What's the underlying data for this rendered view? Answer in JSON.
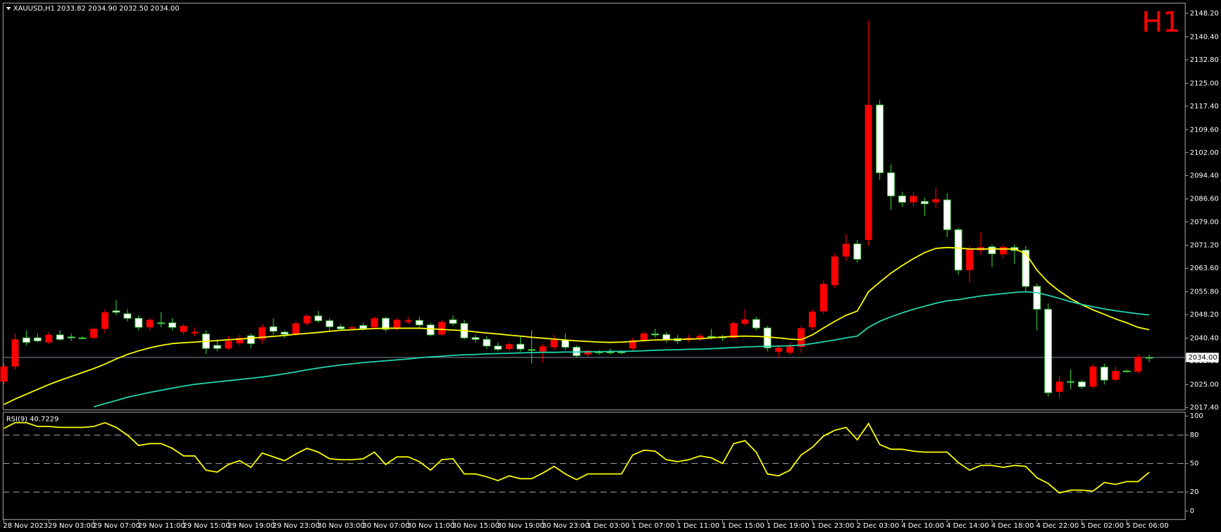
{
  "chart_data": [
    {
      "type": "candlestick",
      "symbol": "XAUUSD,H1",
      "quote": "2033.82 2034.90 2032.50 2034.00",
      "timeframe": "H1",
      "bull_color": "#ffffff",
      "bull_outline": "#32cd32",
      "bear_color": "#ff0000",
      "categories": [
        "28 Nov 2023",
        null,
        null,
        null,
        "29 Nov 03:00",
        null,
        null,
        null,
        "29 Nov 07:00",
        null,
        null,
        null,
        "29 Nov 11:00",
        null,
        null,
        null,
        "29 Nov 15:00",
        null,
        null,
        null,
        "29 Nov 19:00",
        null,
        null,
        null,
        "29 Nov 23:00",
        null,
        null,
        null,
        "30 Nov 03:00",
        null,
        null,
        null,
        "30 Nov 07:00",
        null,
        null,
        null,
        "30 Nov 11:00",
        null,
        null,
        null,
        "30 Nov 15:00",
        null,
        null,
        null,
        "30 Nov 19:00",
        null,
        null,
        null,
        "30 Nov 23:00",
        null,
        null,
        null,
        "1 Dec 03:00",
        null,
        null,
        null,
        "1 Dec 07:00",
        null,
        null,
        null,
        "1 Dec 11:00",
        null,
        null,
        null,
        "1 Dec 15:00",
        null,
        null,
        null,
        "1 Dec 19:00",
        null,
        null,
        null,
        "1 Dec 23:00",
        null,
        null,
        null,
        "2 Dec 03:00",
        null,
        null,
        null,
        "4 Dec 10:00",
        null,
        null,
        null,
        "4 Dec 14:00",
        null,
        null,
        null,
        "4 Dec 18:00",
        null,
        null,
        null,
        "4 Dec 22:00",
        null,
        null,
        null,
        "5 Dec 02:00",
        null,
        null,
        null,
        "5 Dec 06:00",
        null,
        null
      ],
      "open": [
        2031,
        2040,
        2039,
        2039.5,
        2041.5,
        2040,
        2040.5,
        2040.5,
        2043.5,
        2049,
        2049,
        2047,
        2044,
        2046.5,
        2045.5,
        2044,
        2044.5,
        2042.5,
        2037,
        2037,
        2039.5,
        2040.5,
        2038.6,
        2044,
        2042.7,
        2041.7,
        2045.3,
        2047.8,
        2046.2,
        2044.2,
        2043.5,
        2044,
        2043.6,
        2047,
        2043.3,
        2046.5,
        2046.3,
        2044.8,
        2041.5,
        2045.8,
        2045.3,
        2040.5,
        2040,
        2037.8,
        2036.7,
        2038.4,
        2036.8,
        2036.4,
        2037.7,
        2039.8,
        2037.4,
        2034.6,
        2036.2,
        2035.6,
        2035.8,
        2035.6,
        2039.7,
        2042,
        2041.5,
        2039.8,
        2039.5,
        2040.5,
        2041.2,
        2040.8,
        2040.5,
        2045.4,
        2046.6,
        2043.8,
        2037.2,
        2037.2,
        2037.6,
        2043.7,
        2049.2,
        2058.4,
        2067.5,
        2071.7,
        2066.6,
        2117.8,
        2095.3,
        2087.6,
        2085.5,
        2087.6,
        2085,
        2086.5,
        2076.4,
        2063,
        2070,
        2070.6,
        2068.4,
        2070.7,
        2069.5,
        2057.6,
        2050,
        2022.3,
        2026,
        2025.8,
        2024.3,
        2031,
        2026.5,
        2029.5,
        2029.3,
        2034.2,
        2033.82
      ],
      "high": [
        2032,
        2042,
        2043,
        2042,
        2042.5,
        2043,
        2042,
        2041,
        2044,
        2050,
        2053,
        2050,
        2048,
        2047,
        2049,
        2047,
        2045,
        2044,
        2043,
        2040,
        2041,
        2041.5,
        2042,
        2045,
        2047,
        2043,
        2046,
        2048.5,
        2049.5,
        2047,
        2045,
        2044.5,
        2045.5,
        2047.5,
        2047.5,
        2047,
        2047.5,
        2047.5,
        2045.5,
        2046.5,
        2048,
        2046.5,
        2041.5,
        2041,
        2039,
        2039,
        2041,
        2043,
        2038.5,
        2041.5,
        2042,
        2038,
        2036.5,
        2036.5,
        2037,
        2036.5,
        2040.5,
        2042.5,
        2043.5,
        2042.5,
        2041.5,
        2041.5,
        2042,
        2043.5,
        2041.5,
        2046,
        2050,
        2047.5,
        2044.5,
        2038,
        2039,
        2044.5,
        2050,
        2059.5,
        2068.5,
        2075,
        2073,
        2145.7,
        2119.5,
        2098,
        2089,
        2089,
        2087,
        2090.5,
        2088.5,
        2077,
        2071,
        2075.5,
        2071.5,
        2071.5,
        2071.5,
        2071,
        2058.5,
        2052,
        2028,
        2030,
        2026.5,
        2032,
        2032,
        2031,
        2030,
        2035,
        2034.9
      ],
      "low": [
        2025,
        2030,
        2038,
        2039,
        2038.5,
        2039.5,
        2039.5,
        2040,
        2040,
        2042,
        2048,
        2046,
        2043,
        2043,
        2044,
        2043,
        2041.5,
        2041,
        2035,
        2036,
        2036.5,
        2038,
        2037,
        2038.5,
        2041.5,
        2040.5,
        2041,
        2044.5,
        2045.5,
        2043,
        2043,
        2043,
        2043,
        2043.5,
        2042.5,
        2043,
        2045,
        2044,
        2041,
        2041,
        2044.5,
        2040,
        2039,
        2037,
        2036,
        2036,
        2036,
        2032,
        2032.5,
        2036.5,
        2036.5,
        2034,
        2034.3,
        2034.8,
        2035,
        2035,
        2036,
        2039,
        2040.5,
        2039,
        2038.5,
        2039,
        2039.5,
        2040,
        2039.5,
        2040,
        2044.5,
        2043,
        2036,
        2034,
        2034.8,
        2035.5,
        2043,
        2048.5,
        2057,
        2066,
        2065.5,
        2071,
        2093,
        2083,
        2084,
        2084,
        2081,
        2083.5,
        2074,
        2061.5,
        2059,
        2068,
        2064,
        2067,
        2065,
        2056,
        2043,
        2021,
        2020.5,
        2023.5,
        2023.5,
        2023.8,
        2025,
        2026,
        2029,
        2028.5,
        2032.5
      ],
      "close": [
        2026,
        2031,
        2040.5,
        2040.5,
        2039,
        2041.5,
        2040.8,
        2040.5,
        2040.5,
        2043.5,
        2049.5,
        2048.5,
        2047,
        2044,
        2045.5,
        2045.5,
        2042.5,
        2042,
        2041.8,
        2038,
        2037,
        2038.7,
        2041.2,
        2040,
        2044.2,
        2042.4,
        2041.7,
        2045.3,
        2047.8,
        2046.2,
        2044.2,
        2043.6,
        2044.6,
        2044,
        2047,
        2043.5,
        2045.8,
        2046.3,
        2044.8,
        2041.6,
        2046.5,
        2045.3,
        2040.6,
        2040,
        2037.8,
        2036.8,
        2038.4,
        2036.6,
        2036,
        2037.4,
        2039.8,
        2037.4,
        2035,
        2035.8,
        2035.8,
        2035.8,
        2037,
        2039.8,
        2041.8,
        2041.6,
        2040.3,
        2039.8,
        2040,
        2041,
        2040.8,
        2040.5,
        2045.2,
        2046.6,
        2043.8,
        2035.9,
        2035.6,
        2037.5,
        2044,
        2049.3,
        2058,
        2067.5,
        2071.7,
        2073,
        2117.8,
        2095.3,
        2087.6,
        2085.5,
        2085.8,
        2085.5,
        2086.3,
        2076.4,
        2063,
        2069.5,
        2070.7,
        2068.2,
        2070.5,
        2069.6,
        2057.6,
        2050,
        2022.6,
        2026,
        2025.9,
        2024.3,
        2030.8,
        2026.6,
        2029.5,
        2029.3,
        2034
      ],
      "series": [
        {
          "color": "#ffff00",
          "values": [
            2018.4,
            2020.2,
            2021.8,
            2023.4,
            2025,
            2026.4,
            2027.7,
            2029,
            2030.3,
            2031.8,
            2033.5,
            2035,
            2036.2,
            2037.2,
            2038,
            2038.6,
            2038.9,
            2039.1,
            2039.4,
            2039.6,
            2039.9,
            2040.1,
            2040.4,
            2040.7,
            2041,
            2041.3,
            2041.7,
            2042,
            2042.3,
            2042.7,
            2043,
            2043.2,
            2043.4,
            2043.6,
            2043.7,
            2043.7,
            2043.7,
            2043.7,
            2043.5,
            2043.3,
            2043.1,
            2042.9,
            2042.5,
            2042.1,
            2041.8,
            2041.4,
            2041.1,
            2040.7,
            2040.4,
            2040.1,
            2039.8,
            2039.5,
            2039.3,
            2039.1,
            2039,
            2039.1,
            2039.3,
            2039.6,
            2039.8,
            2039.9,
            2040,
            2040.1,
            2040.2,
            2040.5,
            2040.8,
            2041,
            2041.1,
            2041,
            2040.8,
            2040.5,
            2040.1,
            2039.9,
            2041.5,
            2043.8,
            2046,
            2048,
            2049.4,
            2055.8,
            2059,
            2062,
            2064.5,
            2066.8,
            2068.8,
            2070.2,
            2070.5,
            2070.3,
            2070,
            2070,
            2070,
            2070,
            2070,
            2068.5,
            2063,
            2059,
            2056,
            2053.5,
            2051.5,
            2049.8,
            2048.3,
            2046.8,
            2045.5,
            2044,
            2043.2
          ]
        },
        {
          "color": "#20d8b0",
          "values": [
            null,
            null,
            null,
            null,
            null,
            null,
            null,
            null,
            2017.6,
            2018.7,
            2019.7,
            2020.8,
            2021.6,
            2022.4,
            2023.1,
            2023.8,
            2024.5,
            2025.1,
            2025.5,
            2025.9,
            2026.3,
            2026.7,
            2027.1,
            2027.5,
            2028,
            2028.6,
            2029.2,
            2029.9,
            2030.5,
            2031,
            2031.5,
            2031.9,
            2032.3,
            2032.6,
            2032.9,
            2033.2,
            2033.5,
            2033.9,
            2034.2,
            2034.4,
            2034.7,
            2034.9,
            2035,
            2035.2,
            2035.3,
            2035.4,
            2035.5,
            2035.6,
            2035.7,
            2035.7,
            2035.8,
            2035.8,
            2035.9,
            2035.9,
            2036,
            2036,
            2036.1,
            2036.2,
            2036.4,
            2036.5,
            2036.6,
            2036.7,
            2036.8,
            2036.9,
            2037.1,
            2037.3,
            2037.5,
            2037.6,
            2037.7,
            2037.8,
            2037.9,
            2038.1,
            2038.6,
            2039.2,
            2039.8,
            2040.5,
            2041.1,
            2044,
            2046,
            2047.5,
            2048.8,
            2050,
            2051,
            2052,
            2052.8,
            2053.2,
            2053.8,
            2054.4,
            2054.8,
            2055.2,
            2055.6,
            2055.8,
            2055.5,
            2054.6,
            2053.6,
            2052.5,
            2051.6,
            2050.8,
            2050.1,
            2049.5,
            2049,
            2048.5,
            2048.1
          ]
        }
      ],
      "current_price": {
        "value": 2034,
        "label": "2034.00"
      },
      "ylim": [
        2016.6,
        2151.6
      ],
      "yticks": [
        {
          "value": 2148.2,
          "label": "2148.20"
        },
        {
          "value": 2140.4,
          "label": "2140.40"
        },
        {
          "value": 2132.8,
          "label": "2132.80"
        },
        {
          "value": 2125,
          "label": "2125.00"
        },
        {
          "value": 2117.4,
          "label": "2117.40"
        },
        {
          "value": 2109.6,
          "label": "2109.60"
        },
        {
          "value": 2102,
          "label": "2102.00"
        },
        {
          "value": 2094.4,
          "label": "2094.40"
        },
        {
          "value": 2086.6,
          "label": "2086.60"
        },
        {
          "value": 2079,
          "label": "2079.00"
        },
        {
          "value": 2071.2,
          "label": "2071.20"
        },
        {
          "value": 2063.6,
          "label": "2063.60"
        },
        {
          "value": 2055.8,
          "label": "2055.80"
        },
        {
          "value": 2048.2,
          "label": "2048.20"
        },
        {
          "value": 2040.4,
          "label": "2040.40"
        },
        {
          "value": 2032.8,
          "label": "2032.80"
        },
        {
          "value": 2025,
          "label": "2025.00"
        },
        {
          "value": 2017.4,
          "label": "2017.40"
        }
      ]
    },
    {
      "type": "line",
      "title": "RSI(9) 40.7229",
      "series": [
        {
          "color": "#ffff00",
          "values": [
            87,
            93,
            93,
            89,
            89,
            88,
            88,
            88,
            89,
            93,
            88,
            80,
            69,
            71,
            71,
            66,
            58,
            58,
            43,
            41,
            49,
            53,
            46,
            61,
            57,
            53,
            60,
            66,
            62,
            55,
            54,
            54,
            55,
            62,
            49,
            57,
            57,
            52,
            43,
            54,
            55,
            39,
            39,
            36,
            32,
            37,
            34,
            34,
            40,
            47,
            39,
            33,
            39,
            39,
            39,
            39,
            59,
            64,
            63,
            54,
            52,
            54,
            58,
            56,
            50,
            71,
            74,
            62,
            39,
            37,
            43,
            59,
            67,
            79,
            85,
            88,
            75,
            92,
            70,
            65,
            65,
            63,
            62,
            62,
            62,
            51,
            43,
            48,
            48,
            46,
            48,
            47,
            35,
            29,
            19,
            22,
            22,
            21,
            30,
            28,
            31,
            31,
            40.7229
          ]
        }
      ],
      "ylim": [
        -9,
        104
      ],
      "yticks": [
        100,
        80,
        50,
        20,
        0
      ],
      "levels": [
        80,
        50,
        20
      ]
    }
  ]
}
